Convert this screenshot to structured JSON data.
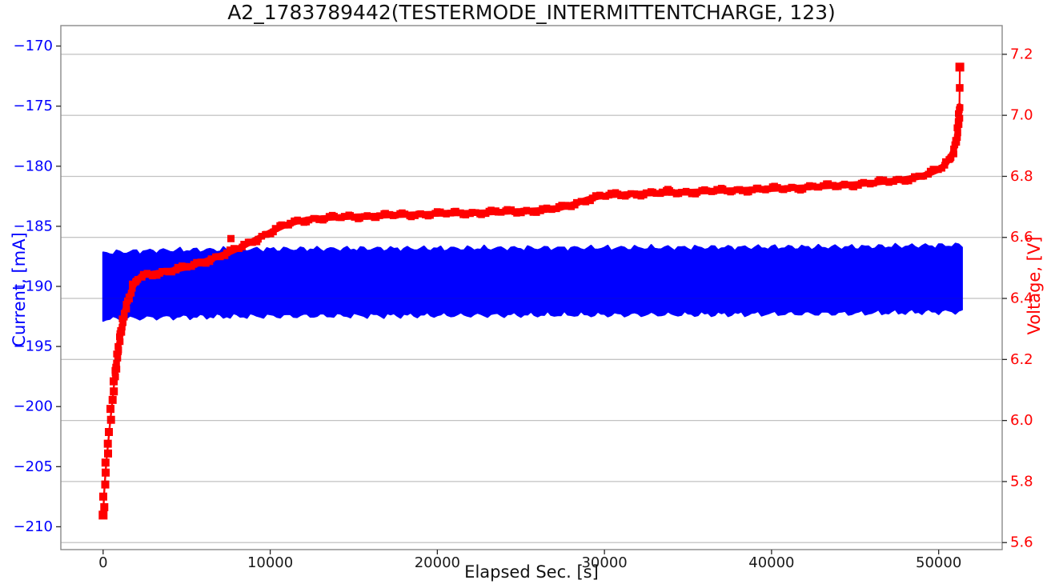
{
  "chart_data": {
    "type": "scatter",
    "title": "A2_1783789442(TESTERMODE_INTERMITTENTCHARGE, 123)",
    "xlabel": "Elapsed Sec. [s]",
    "x_ticks": [
      0,
      10000,
      20000,
      30000,
      40000,
      50000
    ],
    "xlim": [
      -2530,
      53800
    ],
    "grid": "horizontal gridlines at right-axis (voltage) ticks, light gray, no vertical grid",
    "background": "#ffffff",
    "left_axis": {
      "label": "Current, [mA]",
      "color": "#0000ff",
      "ticks": [
        -170,
        -175,
        -180,
        -185,
        -190,
        -195,
        -200,
        -205,
        -210
      ],
      "lim": [
        -211.9,
        -168.3
      ]
    },
    "right_axis": {
      "label": "Voltage, [V]",
      "color": "#ff0000",
      "ticks": [
        7.2,
        7.0,
        6.8,
        6.6,
        6.4,
        6.2,
        6.0,
        5.8,
        5.6
      ],
      "lim": [
        5.577,
        7.294
      ]
    },
    "series": [
      {
        "name": "Current",
        "axis": "left",
        "color": "#0000ff",
        "style": "dense noisy scatter band of square markers",
        "band_t": [
          0,
          3000,
          8000,
          15000,
          25000,
          35000,
          45000,
          51400
        ],
        "band_top": [
          -187.25,
          -187.05,
          -186.95,
          -186.9,
          -186.85,
          -186.8,
          -186.75,
          -186.6
        ],
        "band_bottom": [
          -192.7,
          -192.55,
          -192.45,
          -192.4,
          -192.35,
          -192.3,
          -192.2,
          -192.05
        ]
      },
      {
        "name": "Voltage",
        "axis": "right",
        "color": "#ff0000",
        "style": "thick square-marker line",
        "points": [
          [
            0,
            5.69
          ],
          [
            70,
            5.77
          ],
          [
            140,
            5.825
          ],
          [
            210,
            5.875
          ],
          [
            290,
            5.92
          ],
          [
            370,
            5.965
          ],
          [
            450,
            6.01
          ],
          [
            530,
            6.05
          ],
          [
            620,
            6.1
          ],
          [
            720,
            6.15
          ],
          [
            820,
            6.2
          ],
          [
            950,
            6.25
          ],
          [
            1100,
            6.3
          ],
          [
            1300,
            6.36
          ],
          [
            1530,
            6.4
          ],
          [
            1800,
            6.44
          ],
          [
            2100,
            6.465
          ],
          [
            2580,
            6.478
          ],
          [
            3200,
            6.483
          ],
          [
            4000,
            6.49
          ],
          [
            5000,
            6.502
          ],
          [
            6000,
            6.52
          ],
          [
            7000,
            6.54
          ],
          [
            7600,
            6.552
          ],
          [
            8400,
            6.572
          ],
          [
            9200,
            6.595
          ],
          [
            10000,
            6.617
          ],
          [
            10800,
            6.638
          ],
          [
            11600,
            6.652
          ],
          [
            12400,
            6.66
          ],
          [
            13500,
            6.664
          ],
          [
            15000,
            6.668
          ],
          [
            17000,
            6.672
          ],
          [
            19000,
            6.676
          ],
          [
            21000,
            6.679
          ],
          [
            23000,
            6.682
          ],
          [
            25000,
            6.686
          ],
          [
            26500,
            6.69
          ],
          [
            27400,
            6.697
          ],
          [
            28200,
            6.71
          ],
          [
            29000,
            6.725
          ],
          [
            29700,
            6.734
          ],
          [
            30500,
            6.739
          ],
          [
            32000,
            6.743
          ],
          [
            34000,
            6.747
          ],
          [
            36000,
            6.751
          ],
          [
            38000,
            6.755
          ],
          [
            40000,
            6.759
          ],
          [
            42000,
            6.764
          ],
          [
            44000,
            6.77
          ],
          [
            46000,
            6.778
          ],
          [
            47500,
            6.787
          ],
          [
            48700,
            6.797
          ],
          [
            49400,
            6.808
          ],
          [
            50000,
            6.822
          ],
          [
            50400,
            6.84
          ],
          [
            50700,
            6.862
          ],
          [
            50900,
            6.885
          ],
          [
            51050,
            6.915
          ],
          [
            51150,
            6.95
          ],
          [
            51210,
            6.99
          ],
          [
            51240,
            7.03
          ]
        ],
        "outliers": [
          [
            7650,
            6.596
          ],
          [
            33800,
            6.757
          ]
        ],
        "isolated_end_points": [
          [
            51258,
            7.09
          ],
          [
            51268,
            7.158
          ]
        ]
      }
    ]
  }
}
